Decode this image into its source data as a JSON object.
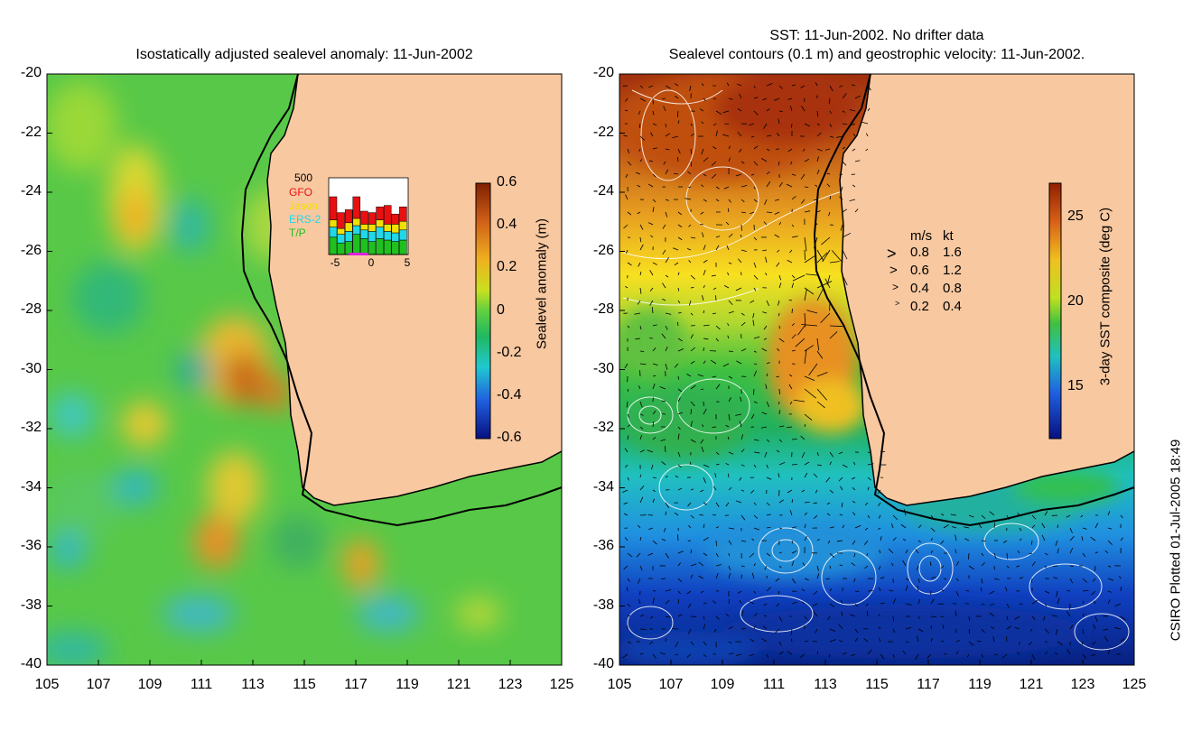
{
  "left_panel": {
    "title": "Isostatically adjusted sealevel anomaly: 11-Jun-2002",
    "x_ticks": [
      "105",
      "107",
      "109",
      "111",
      "113",
      "115",
      "117",
      "119",
      "121",
      "123",
      "125"
    ],
    "y_ticks": [
      "-20",
      "-22",
      "-24",
      "-26",
      "-28",
      "-30",
      "-32",
      "-34",
      "-36",
      "-38",
      "-40"
    ],
    "colorbar": {
      "label": "Sealevel anomaly (m)",
      "ticks": [
        "0.6",
        "0.4",
        "0.2",
        "0",
        "-0.2",
        "-0.4",
        "-0.6"
      ],
      "range": [
        -0.6,
        0.6
      ]
    },
    "inset": {
      "ymax_label": "500",
      "legend": [
        {
          "name": "GFO",
          "color": "#e81010"
        },
        {
          "name": "Jason",
          "color": "#f0e000"
        },
        {
          "name": "ERS-2",
          "color": "#20d8e8"
        },
        {
          "name": "T/P",
          "color": "#20c020"
        }
      ],
      "x_ticks": [
        "-5",
        "0",
        "5"
      ],
      "bars": [
        [
          120,
          70,
          50,
          160
        ],
        [
          80,
          60,
          40,
          110
        ],
        [
          90,
          70,
          60,
          90
        ],
        [
          140,
          60,
          50,
          150
        ],
        [
          110,
          60,
          40,
          90
        ],
        [
          90,
          70,
          50,
          80
        ],
        [
          110,
          80,
          50,
          90
        ],
        [
          100,
          60,
          50,
          130
        ],
        [
          90,
          60,
          60,
          70
        ],
        [
          100,
          70,
          60,
          100
        ]
      ]
    }
  },
  "right_panel": {
    "title_line1": "SST: 11-Jun-2002. No drifter data",
    "title_line2": "Sealevel contours (0.1 m) and geostrophic velocity: 11-Jun-2002.",
    "x_ticks": [
      "105",
      "107",
      "109",
      "111",
      "113",
      "115",
      "117",
      "119",
      "121",
      "123",
      "125"
    ],
    "y_ticks": [
      "-20",
      "-22",
      "-24",
      "-26",
      "-28",
      "-30",
      "-32",
      "-34",
      "-36",
      "-38",
      "-40"
    ],
    "colorbar": {
      "label": "3-day SST composite (deg C)",
      "ticks": [
        "25",
        "20",
        "15"
      ],
      "range": [
        12,
        27
      ]
    },
    "velocity_legend": {
      "header_ms": "m/s",
      "header_kt": "kt",
      "rows": [
        {
          "ms": "0.8",
          "kt": "1.6"
        },
        {
          "ms": "0.6",
          "kt": "1.2"
        },
        {
          "ms": "0.4",
          "kt": "0.8"
        },
        {
          "ms": "0.2",
          "kt": "0.4"
        }
      ]
    }
  },
  "footer_credit": "CSIRO Plotted 01-Jul-2005 18:49",
  "colors": {
    "land": "#f8c8a0",
    "coast": "#000000",
    "contour": "#ffffff"
  }
}
